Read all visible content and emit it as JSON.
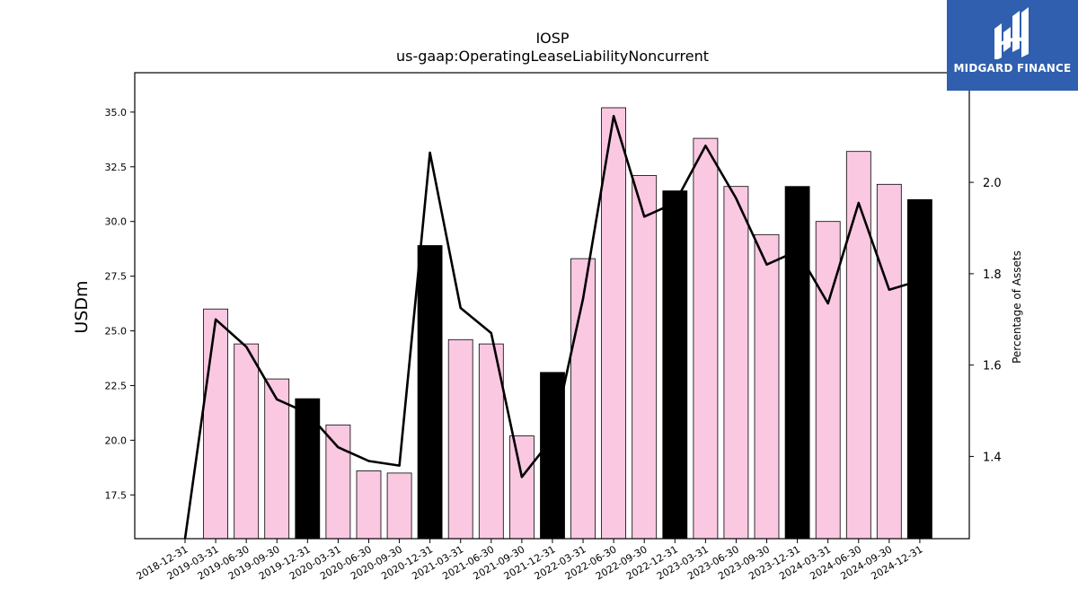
{
  "brand": {
    "name": "MIDGARD FINANCE",
    "logo_icon": "midgard-mh-logo-icon",
    "background": "#2f5fae"
  },
  "chart_data": {
    "type": "bar",
    "title": "IOSP",
    "subtitle": "us-gaap:OperatingLeaseLiabilityNoncurrent",
    "ylabel": "USDm",
    "y2label": "Percentage of Assets",
    "ylim": [
      15.5,
      36.8
    ],
    "y2lim": [
      1.22,
      2.24
    ],
    "yticks": [
      "17.5",
      "20.0",
      "22.5",
      "25.0",
      "27.5",
      "30.0",
      "32.5",
      "35.0"
    ],
    "y2ticks": [
      "1.4",
      "1.6",
      "1.8",
      "2.0"
    ],
    "categories": [
      "2018-12-31",
      "2019-03-31",
      "2019-06-30",
      "2019-09-30",
      "2019-12-31",
      "2020-03-31",
      "2020-06-30",
      "2020-09-30",
      "2020-12-31",
      "2021-03-31",
      "2021-06-30",
      "2021-09-30",
      "2021-12-31",
      "2022-03-31",
      "2022-06-30",
      "2022-09-30",
      "2022-12-31",
      "2023-03-31",
      "2023-06-30",
      "2023-09-30",
      "2023-12-31",
      "2024-03-31",
      "2024-06-30",
      "2024-09-30",
      "2024-12-31"
    ],
    "series": [
      {
        "kind": "bar",
        "values": [
          null,
          26.0,
          24.4,
          22.8,
          21.9,
          20.7,
          18.6,
          18.5,
          28.9,
          24.6,
          24.4,
          20.2,
          23.1,
          28.3,
          35.2,
          32.1,
          31.4,
          33.8,
          31.6,
          29.4,
          31.6,
          30.0,
          33.2,
          31.7,
          31.0
        ],
        "annual_color": "#000000",
        "quarter_color": "#fbc8e2"
      },
      {
        "kind": "line",
        "axis": "right",
        "values": [
          1.22,
          1.7,
          1.64,
          1.525,
          1.495,
          1.42,
          1.39,
          1.38,
          2.065,
          1.725,
          1.67,
          1.355,
          1.44,
          1.745,
          2.145,
          1.925,
          1.955,
          2.08,
          1.965,
          1.82,
          1.85,
          1.735,
          1.955,
          1.765,
          1.785
        ],
        "color": "#000000"
      }
    ],
    "grid": false,
    "legend": "none"
  }
}
